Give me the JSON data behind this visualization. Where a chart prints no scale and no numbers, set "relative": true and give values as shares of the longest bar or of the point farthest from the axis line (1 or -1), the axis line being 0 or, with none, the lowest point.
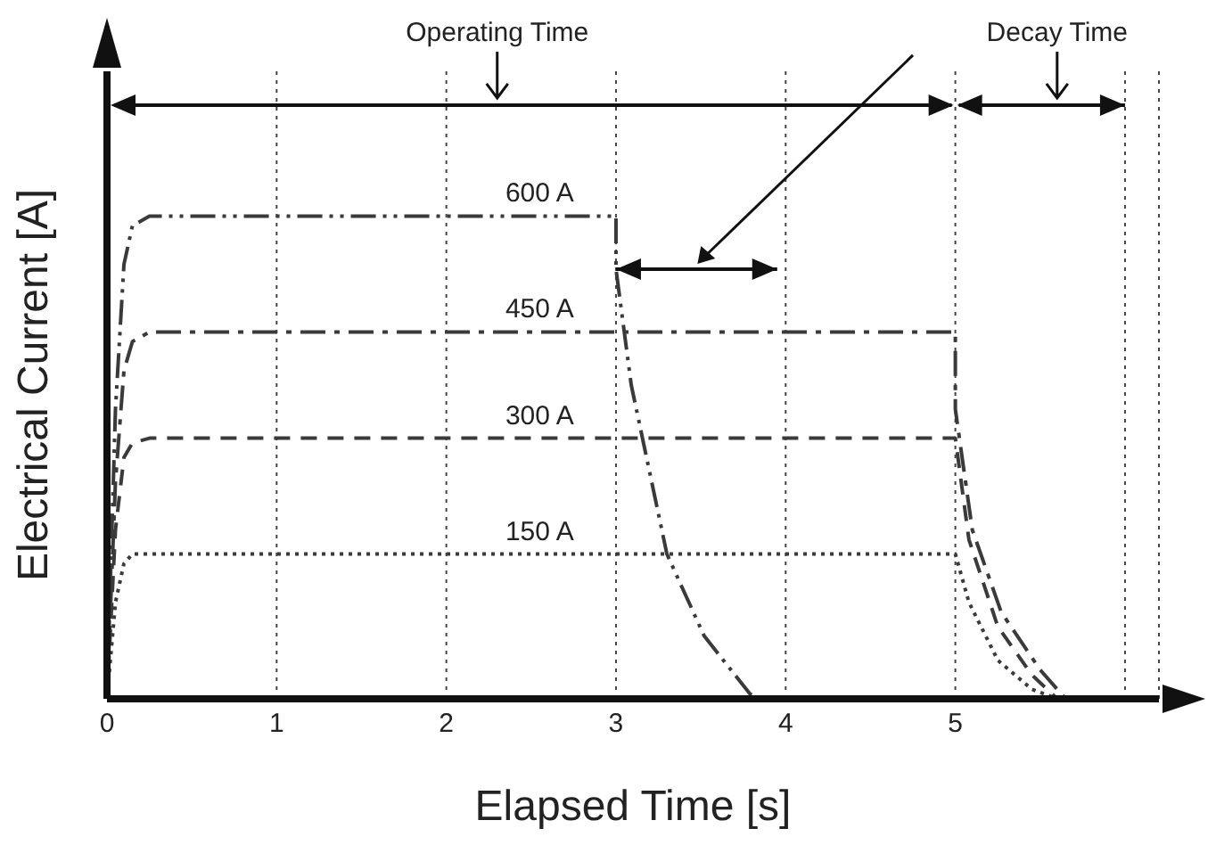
{
  "chart_data": {
    "type": "line",
    "relative": true,
    "xlabel": "Elapsed Time [s]",
    "ylabel": "Electrical Current [A]",
    "xlim": [
      0,
      6.2
    ],
    "xticks": [
      0,
      1,
      2,
      3,
      4,
      5,
      {
        "value": 6,
        "label": null
      }
    ],
    "grid": "x",
    "marker": "none",
    "annotations": [
      "Operating Time",
      "Decay Time"
    ],
    "series": [
      {
        "name": "600 A",
        "color": "#3a3a3a",
        "line_style": "dashdotdot",
        "x": [
          0,
          0.05,
          0.1,
          0.15,
          0.25,
          3,
          3,
          3.09,
          3.3,
          3.52,
          3.79,
          3.85
        ],
        "values": [
          0,
          0.6,
          0.9,
          0.98,
          1,
          1,
          0.89,
          0.65,
          0.3,
          0.13,
          0.01,
          0
        ]
      },
      {
        "name": "450 A",
        "color": "#3a3a3a",
        "line_style": "dashdot",
        "x": [
          0,
          0.05,
          0.1,
          0.15,
          0.25,
          5,
          5,
          5.1,
          5.27,
          5.5,
          5.65
        ],
        "values": [
          0,
          0.45,
          0.68,
          0.74,
          0.76,
          0.76,
          0.6,
          0.35,
          0.18,
          0.06,
          0
        ]
      },
      {
        "name": "300 A",
        "color": "#3a3a3a",
        "line_style": "dashed",
        "x": [
          0,
          0.05,
          0.1,
          0.15,
          0.25,
          5,
          5.08,
          5.25,
          5.45,
          5.6
        ],
        "values": [
          0,
          0.35,
          0.5,
          0.53,
          0.54,
          0.54,
          0.33,
          0.15,
          0.05,
          0
        ]
      },
      {
        "name": "150 A",
        "color": "#3a3a3a",
        "line_style": "dotted",
        "x": [
          0,
          0.05,
          0.1,
          0.15,
          0.25,
          5,
          5.08,
          5.25,
          5.45,
          5.6
        ],
        "values": [
          0,
          0.2,
          0.28,
          0.3,
          0.3,
          0.3,
          0.2,
          0.08,
          0.02,
          0
        ]
      }
    ]
  }
}
